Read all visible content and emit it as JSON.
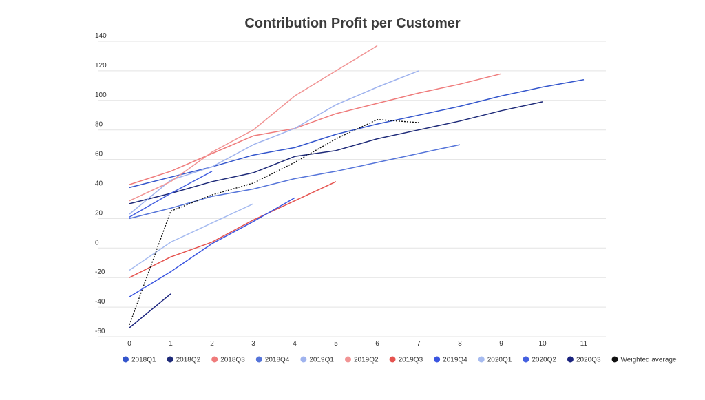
{
  "chart_data": {
    "type": "line",
    "title": "Contribution Profit per Customer",
    "xlabel": "",
    "ylabel": "",
    "xlim": [
      0,
      11
    ],
    "ylim": [
      -60,
      140
    ],
    "x_ticks": [
      "0",
      "1",
      "2",
      "3",
      "4",
      "5",
      "6",
      "7",
      "8",
      "9",
      "10",
      "11"
    ],
    "y_ticks": [
      "140",
      "120",
      "100",
      "80",
      "60",
      "40",
      "20",
      "0",
      "-20",
      "-40",
      "-60"
    ],
    "grid": "horizontal",
    "legend_position": "bottom",
    "series": [
      {
        "name": "2018Q1",
        "color": "#3355cc",
        "dashed": false,
        "x": [
          0,
          1,
          2,
          3,
          4,
          5,
          6,
          7,
          8,
          9,
          10,
          11
        ],
        "y": [
          41,
          48,
          55,
          63,
          68,
          77,
          84,
          90,
          96,
          103,
          109,
          114
        ]
      },
      {
        "name": "2018Q2",
        "color": "#1e2a78",
        "dashed": false,
        "x": [
          0,
          1,
          2,
          3,
          4,
          5,
          6,
          7,
          8,
          9,
          10
        ],
        "y": [
          30,
          37,
          45,
          51,
          62,
          66,
          74,
          80,
          86,
          93,
          99
        ]
      },
      {
        "name": "2018Q3",
        "color": "#ef7b7b",
        "dashed": false,
        "x": [
          0,
          1,
          2,
          3,
          4,
          5,
          6,
          7,
          8,
          9
        ],
        "y": [
          43,
          52,
          64,
          76,
          81,
          91,
          98,
          105,
          111,
          118
        ]
      },
      {
        "name": "2018Q4",
        "color": "#5574d9",
        "dashed": false,
        "x": [
          0,
          1,
          2,
          3,
          4,
          5,
          6,
          7,
          8
        ],
        "y": [
          20,
          27,
          35,
          40,
          47,
          52,
          58,
          64,
          70
        ]
      },
      {
        "name": "2019Q1",
        "color": "#9fb3ee",
        "dashed": false,
        "x": [
          0,
          1,
          2,
          3,
          4,
          5,
          6,
          7
        ],
        "y": [
          23,
          46,
          55,
          70,
          81,
          97,
          109,
          120
        ]
      },
      {
        "name": "2019Q2",
        "color": "#f19494",
        "dashed": false,
        "x": [
          0,
          1,
          2,
          3,
          4,
          5,
          6
        ],
        "y": [
          32,
          45,
          65,
          80,
          103,
          120,
          137
        ]
      },
      {
        "name": "2019Q3",
        "color": "#e5534f",
        "dashed": false,
        "x": [
          0,
          1,
          2,
          3,
          4,
          5
        ],
        "y": [
          -20,
          -6,
          4,
          19,
          32,
          45
        ]
      },
      {
        "name": "2019Q4",
        "color": "#3a55e0",
        "dashed": false,
        "x": [
          0,
          1,
          2,
          3,
          4
        ],
        "y": [
          -33,
          -16,
          3,
          18,
          34
        ]
      },
      {
        "name": "2020Q1",
        "color": "#a6bbf0",
        "dashed": false,
        "x": [
          0,
          1,
          2,
          3
        ],
        "y": [
          -15,
          4,
          17,
          30
        ]
      },
      {
        "name": "2020Q2",
        "color": "#4460e0",
        "dashed": false,
        "x": [
          0,
          1,
          2
        ],
        "y": [
          21,
          37,
          52
        ]
      },
      {
        "name": "2020Q3",
        "color": "#1a237e",
        "dashed": false,
        "x": [
          0,
          1
        ],
        "y": [
          -54,
          -31
        ]
      },
      {
        "name": "Weighted average",
        "color": "#111111",
        "dashed": true,
        "x": [
          0,
          1,
          2,
          3,
          4,
          5,
          6,
          7
        ],
        "y": [
          -52,
          25,
          36,
          44,
          58,
          74,
          87,
          85
        ]
      }
    ]
  }
}
